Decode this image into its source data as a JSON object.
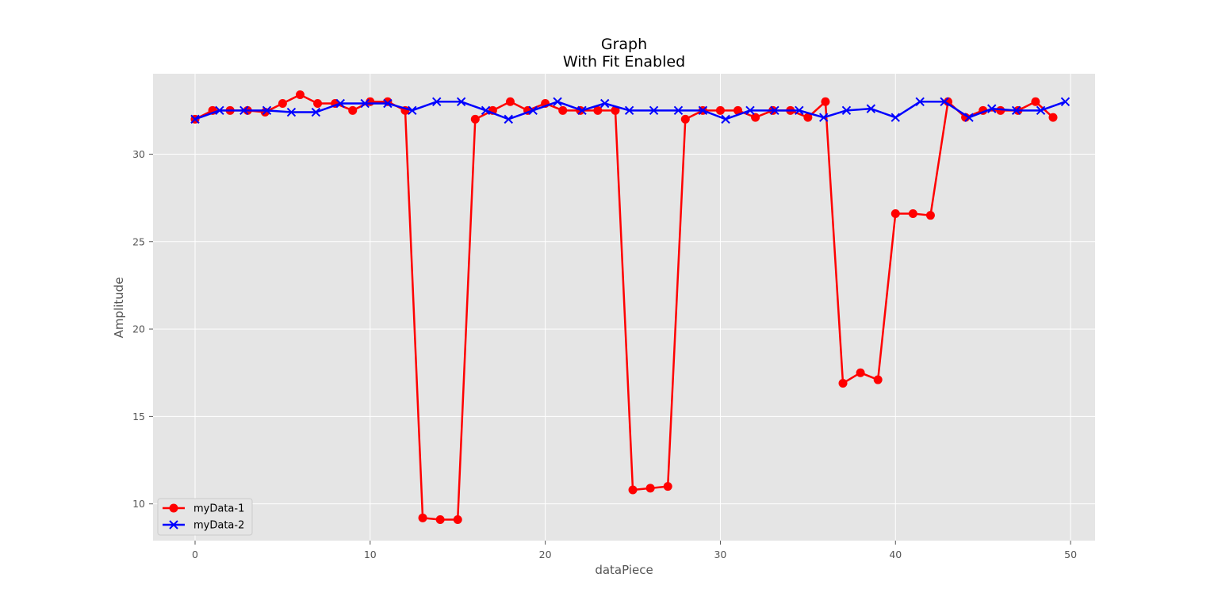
{
  "chart_data": {
    "type": "line",
    "title": "Graph",
    "subtitle": "With Fit Enabled",
    "xlabel": "dataPiece",
    "ylabel": "Amplitude",
    "xlim": [
      -2.4,
      51.4
    ],
    "ylim": [
      7.9,
      34.6
    ],
    "xticks": [
      0,
      10,
      20,
      30,
      40,
      50
    ],
    "yticks": [
      10,
      15,
      20,
      25,
      30
    ],
    "grid": true,
    "legend": "bottom-left",
    "background": "#e5e5e5",
    "series": [
      {
        "name": "myData-1",
        "color": "#ff0000",
        "marker": "circle",
        "x": [
          0,
          1,
          2,
          3,
          4,
          5,
          6,
          7,
          8,
          9,
          10,
          11,
          12,
          13,
          14,
          15,
          16,
          17,
          18,
          19,
          20,
          21,
          22,
          23,
          24,
          25,
          26,
          27,
          28,
          29,
          30,
          31,
          32,
          33,
          34,
          35,
          36,
          37,
          38,
          39,
          40,
          41,
          42,
          43,
          44,
          45,
          46,
          47,
          48,
          49
        ],
        "y": [
          32.0,
          32.5,
          32.5,
          32.5,
          32.4,
          32.9,
          33.4,
          32.9,
          32.9,
          32.5,
          33.0,
          33.0,
          32.5,
          9.2,
          9.1,
          9.1,
          32.0,
          32.5,
          33.0,
          32.5,
          32.9,
          32.5,
          32.5,
          32.5,
          32.5,
          10.8,
          10.9,
          11.0,
          32.0,
          32.5,
          32.5,
          32.5,
          32.1,
          32.5,
          32.5,
          32.1,
          33.0,
          16.9,
          17.5,
          17.1,
          26.6,
          26.6,
          26.5,
          33.0,
          32.1,
          32.5,
          32.5,
          32.5,
          33.0,
          32.1
        ]
      },
      {
        "name": "myData-2",
        "color": "#0000ff",
        "marker": "x",
        "x": [
          0,
          1.4,
          2.8,
          4.1,
          5.5,
          6.9,
          8.3,
          9.7,
          11.0,
          12.4,
          13.8,
          15.2,
          16.6,
          17.9,
          19.3,
          20.7,
          22.1,
          23.4,
          24.8,
          26.2,
          27.6,
          29.0,
          30.3,
          31.7,
          33.1,
          34.5,
          35.9,
          37.2,
          38.6,
          40.0,
          41.4,
          42.8,
          44.2,
          45.5,
          46.9,
          48.3,
          49.7
        ],
        "y": [
          32.0,
          32.5,
          32.5,
          32.5,
          32.4,
          32.4,
          32.9,
          32.9,
          32.9,
          32.5,
          33.0,
          33.0,
          32.5,
          32.0,
          32.5,
          33.0,
          32.5,
          32.9,
          32.5,
          32.5,
          32.5,
          32.5,
          32.0,
          32.5,
          32.5,
          32.5,
          32.1,
          32.5,
          32.6,
          32.1,
          33.0,
          33.0,
          32.1,
          32.6,
          32.5,
          32.5,
          33.0
        ]
      }
    ]
  }
}
